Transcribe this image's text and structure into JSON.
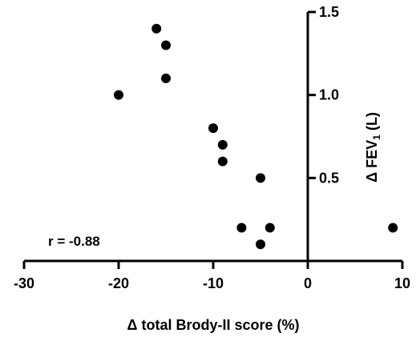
{
  "chart_data": {
    "type": "scatter",
    "title": "",
    "xlabel": "Δ total Brody-II score (%)",
    "ylabel_prefix": "Δ FEV",
    "ylabel_subscript": "1",
    "ylabel_suffix": " (L)",
    "xlim": [
      -30,
      10
    ],
    "ylim": [
      0,
      1.5
    ],
    "x_ticks": [
      -30,
      -20,
      -10,
      0,
      10
    ],
    "x_tick_labels": [
      "-30",
      "-20",
      "-10",
      "0",
      "10"
    ],
    "y_ticks": [
      0.5,
      1.0,
      1.5
    ],
    "y_tick_labels": [
      "0.5",
      "1.0",
      "1.5"
    ],
    "y_axis_position": "at x = 0",
    "grid": false,
    "annotation": "r = -0.88",
    "marker_color": "#000000",
    "points": [
      {
        "x": -16,
        "y": 1.4
      },
      {
        "x": -15,
        "y": 1.3
      },
      {
        "x": -15,
        "y": 1.1
      },
      {
        "x": -20,
        "y": 1.0
      },
      {
        "x": -10,
        "y": 0.8
      },
      {
        "x": -9,
        "y": 0.7
      },
      {
        "x": -9,
        "y": 0.6
      },
      {
        "x": -5,
        "y": 0.5
      },
      {
        "x": -7,
        "y": 0.2
      },
      {
        "x": -4,
        "y": 0.2
      },
      {
        "x": -5,
        "y": 0.1
      },
      {
        "x": 9,
        "y": 0.2
      }
    ]
  }
}
